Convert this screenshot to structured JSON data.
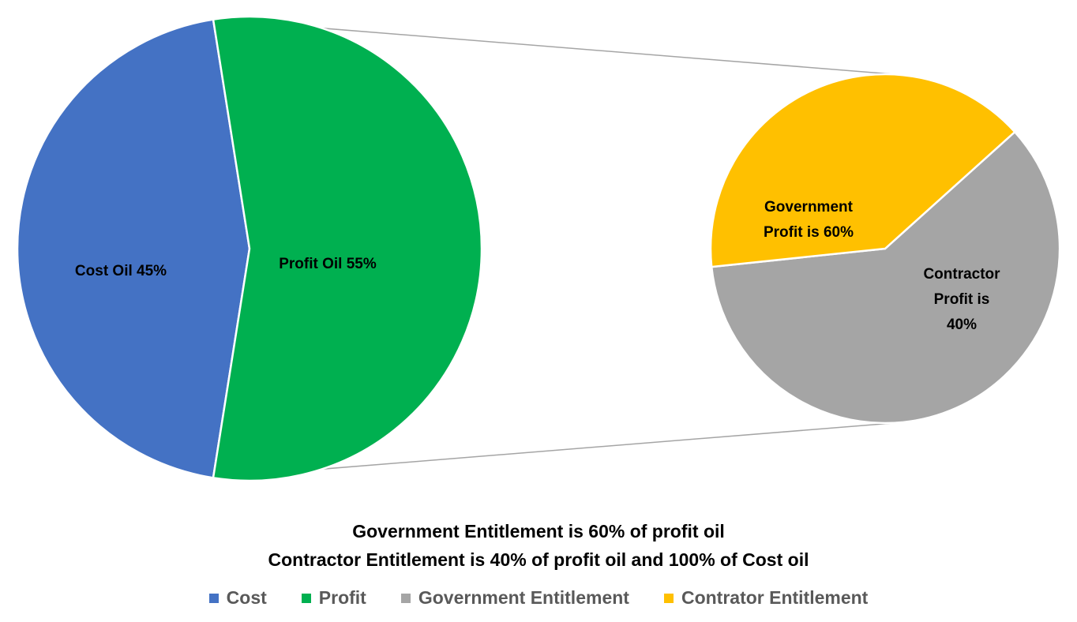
{
  "chart_data": {
    "type": "pie",
    "subtype": "pie-of-pie",
    "main_pie": {
      "slices": [
        {
          "name": "Cost",
          "label": "Cost Oil 45%",
          "value": 45,
          "color": "#4472C4"
        },
        {
          "name": "Profit",
          "label": "Profit Oil 55%",
          "value": 55,
          "color": "#00B050"
        }
      ]
    },
    "secondary_pie": {
      "breakdown_of": "Profit",
      "slices": [
        {
          "name": "Government Entitlement",
          "label_lines": [
            "Government",
            "Profit is 60%"
          ],
          "value": 60,
          "color": "#A5A5A5"
        },
        {
          "name": "Contrator Entitlement",
          "label_lines": [
            "Contractor",
            "Profit is",
            "40%"
          ],
          "value": 40,
          "color": "#FFC000"
        }
      ]
    },
    "connector_color": "#A5A5A5",
    "notes": [
      "Government Entitlement is 60% of profit oil",
      "Contractor Entitlement is 40% of profit oil and 100% of Cost oil"
    ],
    "legend": {
      "position": "bottom",
      "items": [
        {
          "label": "Cost",
          "color": "#4472C4"
        },
        {
          "label": "Profit",
          "color": "#00B050"
        },
        {
          "label": "Government Entitlement",
          "color": "#A5A5A5"
        },
        {
          "label": "Contrator Entitlement",
          "color": "#FFC000"
        }
      ]
    }
  }
}
